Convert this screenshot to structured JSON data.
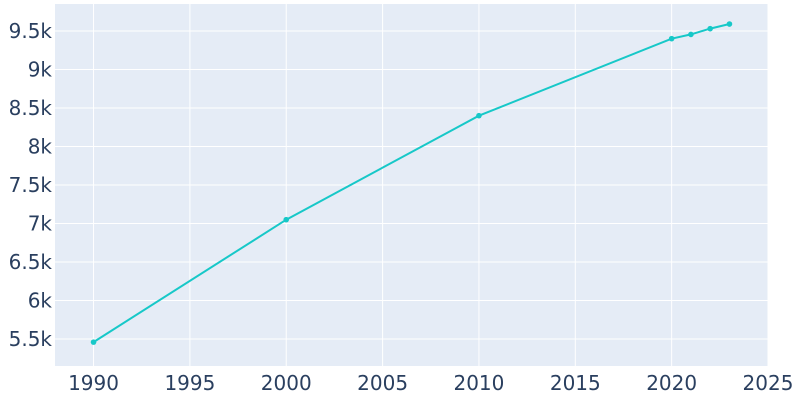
{
  "chart_data": {
    "type": "line",
    "title": "",
    "xlabel": "",
    "ylabel": "",
    "xlim": [
      1988,
      2025
    ],
    "ylim": [
      5150,
      9850
    ],
    "x_ticks": [
      1990,
      1995,
      2000,
      2005,
      2010,
      2015,
      2020,
      2025
    ],
    "x_tick_labels": [
      "1990",
      "1995",
      "2000",
      "2005",
      "2010",
      "2015",
      "2020",
      "2025"
    ],
    "y_ticks": [
      5500,
      6000,
      6500,
      7000,
      7500,
      8000,
      8500,
      9000,
      9500
    ],
    "y_tick_labels": [
      "5.5k",
      "6k",
      "6.5k",
      "7k",
      "7.5k",
      "8k",
      "8.5k",
      "9k",
      "9.5k"
    ],
    "grid": true,
    "legend": "none",
    "colors": {
      "plot_bg": "#e5ecf6",
      "grid": "#ffffff",
      "line": "#17c8c8",
      "tick_text": "#2a3f5f"
    },
    "series": [
      {
        "x": [
          1990,
          2000,
          2010,
          2020,
          2021,
          2022,
          2023
        ],
        "y": [
          5460,
          7050,
          8400,
          9400,
          9455,
          9530,
          9590
        ]
      }
    ]
  }
}
